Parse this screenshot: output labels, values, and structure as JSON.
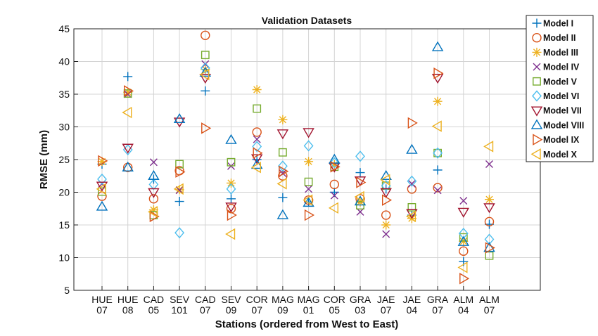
{
  "chart_data": {
    "type": "scatter",
    "title": "Validation Datasets",
    "xlabel": "Stations (ordered from West to East)",
    "ylabel": "RMSE (mm)",
    "ylim": [
      5,
      45
    ],
    "yticks": [
      5,
      10,
      15,
      20,
      25,
      30,
      35,
      40,
      45
    ],
    "grid": true,
    "legend_position": "top-right-outside",
    "categories": [
      [
        "HUE",
        "07"
      ],
      [
        "HUE",
        "08"
      ],
      [
        "CAD",
        "05"
      ],
      [
        "SEV",
        "101"
      ],
      [
        "CAD",
        "07"
      ],
      [
        "SEV",
        "09"
      ],
      [
        "COR",
        "07"
      ],
      [
        "MAG",
        "09"
      ],
      [
        "MAG",
        "01"
      ],
      [
        "COR",
        "05"
      ],
      [
        "GRA",
        "03"
      ],
      [
        "JAE",
        "07"
      ],
      [
        "JAE",
        "04"
      ],
      [
        "GRA",
        "07"
      ],
      [
        "ALM",
        "04"
      ],
      [
        "ALM",
        "07"
      ]
    ],
    "series": [
      {
        "name": "Model I",
        "marker": "plus",
        "color": "#0072BD",
        "values": [
          24.3,
          37.7,
          22.0,
          18.6,
          35.5,
          19.0,
          25.0,
          19.2,
          18.5,
          20.0,
          23.0,
          20.5,
          16.5,
          23.4,
          9.4,
          15.1
        ]
      },
      {
        "name": "Model II",
        "marker": "circle",
        "color": "#D95319",
        "values": [
          19.4,
          23.8,
          19.0,
          23.3,
          44.0,
          17.5,
          29.2,
          22.5,
          18.8,
          21.2,
          19.0,
          16.5,
          20.5,
          20.7,
          11.0,
          15.5
        ]
      },
      {
        "name": "Model III",
        "marker": "asterisk",
        "color": "#EDB120",
        "values": [
          24.7,
          35.3,
          17.3,
          20.4,
          38.8,
          21.4,
          35.7,
          31.1,
          24.7,
          24.2,
          18.5,
          15.0,
          16.0,
          33.9,
          12.5,
          18.9
        ]
      },
      {
        "name": "Model IV",
        "marker": "x",
        "color": "#7E2F8E",
        "values": [
          21.3,
          35.0,
          24.6,
          20.3,
          39.6,
          24.0,
          28.1,
          22.9,
          20.5,
          19.5,
          17.0,
          13.6,
          21.3,
          20.3,
          18.7,
          24.3
        ]
      },
      {
        "name": "Model V",
        "marker": "square",
        "color": "#77AC30",
        "values": [
          20.1,
          35.1,
          16.5,
          24.3,
          41.0,
          24.6,
          32.8,
          26.1,
          21.6,
          23.9,
          18.0,
          21.0,
          17.7,
          26.0,
          13.1,
          10.3
        ]
      },
      {
        "name": "Model VI",
        "marker": "diamond",
        "color": "#4DBEEE",
        "values": [
          22.0,
          26.5,
          21.2,
          13.8,
          39.0,
          20.5,
          27.0,
          24.0,
          27.1,
          24.5,
          25.5,
          21.0,
          21.7,
          26.0,
          13.7,
          12.8
        ]
      },
      {
        "name": "Model VII",
        "marker": "triangle-down",
        "color": "#A2142F",
        "values": [
          21.0,
          26.8,
          20.0,
          30.8,
          37.5,
          17.8,
          25.2,
          29.0,
          29.2,
          23.9,
          21.8,
          20.0,
          16.8,
          37.5,
          17.0,
          17.7
        ]
      },
      {
        "name": "Model VIII",
        "marker": "triangle-up",
        "color": "#0072BD",
        "values": [
          17.8,
          23.8,
          22.5,
          31.2,
          38.3,
          28.0,
          24.2,
          16.5,
          18.4,
          25.0,
          18.6,
          22.5,
          26.5,
          42.2,
          12.4,
          11.5
        ]
      },
      {
        "name": "Model IX",
        "marker": "triangle-right",
        "color": "#D95319",
        "values": [
          24.8,
          35.5,
          16.3,
          23.1,
          29.8,
          16.5,
          26.0,
          23.2,
          16.5,
          23.9,
          21.5,
          18.8,
          30.6,
          38.2,
          6.8,
          11.5
        ]
      },
      {
        "name": "Model X",
        "marker": "triangle-left",
        "color": "#EDB120",
        "values": [
          20.5,
          32.2,
          17.0,
          20.5,
          38.0,
          13.6,
          23.8,
          21.3,
          18.8,
          17.6,
          19.3,
          21.9,
          16.3,
          30.1,
          8.5,
          27.0
        ]
      }
    ]
  }
}
